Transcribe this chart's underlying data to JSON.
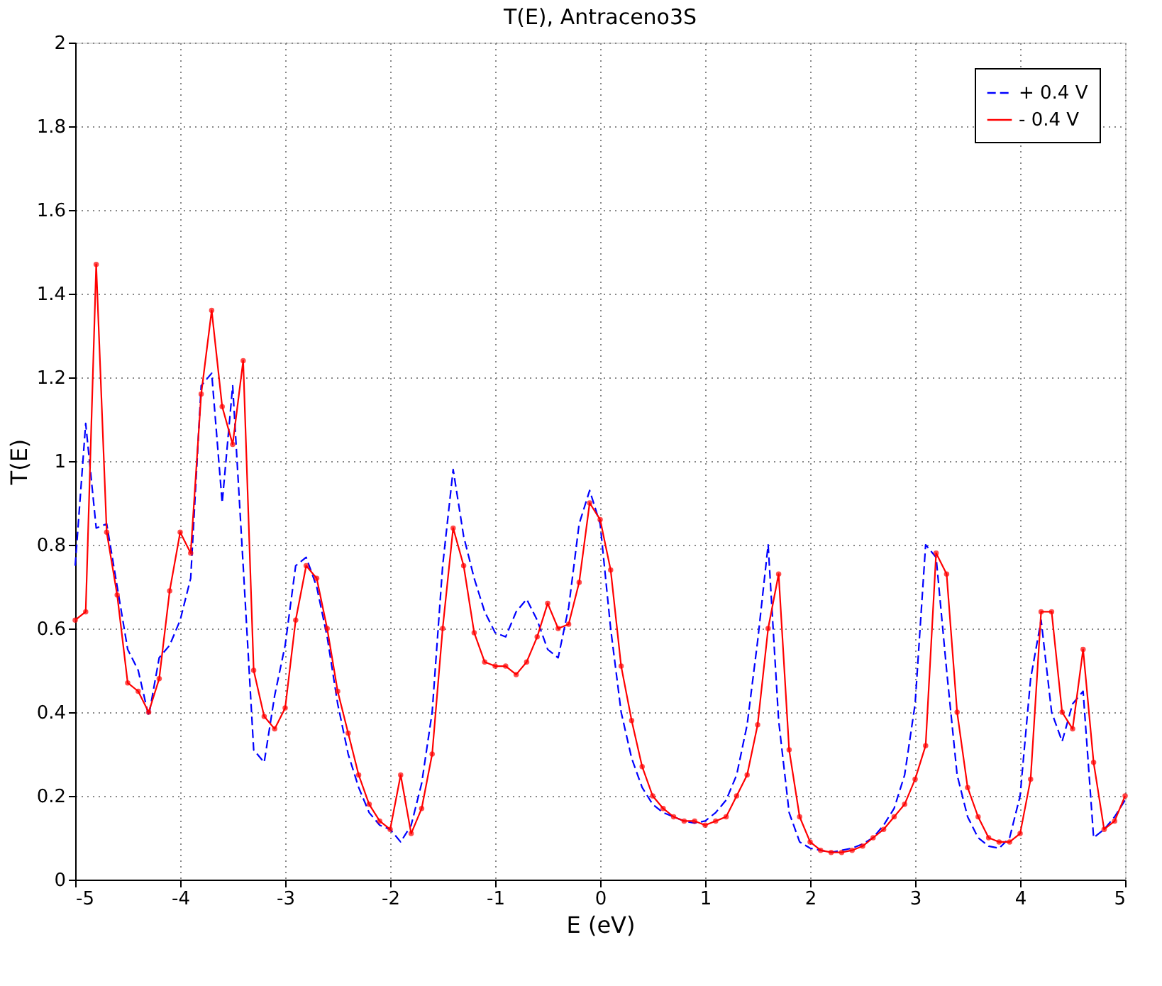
{
  "chart_data": {
    "type": "line",
    "title": "T(E), Antraceno3S",
    "xlabel": "E (eV)",
    "ylabel": "T(E)",
    "x": [
      -5.0,
      -4.9,
      -4.8,
      -4.7,
      -4.6,
      -4.5,
      -4.4,
      -4.3,
      -4.2,
      -4.1,
      -4.0,
      -3.9,
      -3.8,
      -3.7,
      -3.6,
      -3.5,
      -3.4,
      -3.3,
      -3.2,
      -3.1,
      -3.0,
      -2.9,
      -2.8,
      -2.7,
      -2.6,
      -2.5,
      -2.4,
      -2.3,
      -2.2,
      -2.1,
      -2.0,
      -1.9,
      -1.8,
      -1.7,
      -1.6,
      -1.5,
      -1.4,
      -1.3,
      -1.2,
      -1.1,
      -1.0,
      -0.9,
      -0.8,
      -0.7,
      -0.6,
      -0.5,
      -0.4,
      -0.3,
      -0.2,
      -0.1,
      0.0,
      0.1,
      0.2,
      0.3,
      0.4,
      0.5,
      0.6,
      0.7,
      0.8,
      0.9,
      1.0,
      1.1,
      1.2,
      1.3,
      1.4,
      1.5,
      1.6,
      1.7,
      1.8,
      1.9,
      2.0,
      2.1,
      2.2,
      2.3,
      2.4,
      2.5,
      2.6,
      2.7,
      2.8,
      2.9,
      3.0,
      3.1,
      3.2,
      3.3,
      3.4,
      3.5,
      3.6,
      3.7,
      3.8,
      3.9,
      4.0,
      4.1,
      4.2,
      4.3,
      4.4,
      4.5,
      4.6,
      4.7,
      4.8,
      4.9,
      5.0
    ],
    "series": [
      {
        "name": "+ 0.4 V",
        "color": "#0000ff",
        "line_style": "dashed",
        "marker": "none",
        "values": [
          0.75,
          1.09,
          0.84,
          0.85,
          0.7,
          0.55,
          0.5,
          0.39,
          0.53,
          0.56,
          0.62,
          0.72,
          1.18,
          1.21,
          0.9,
          1.18,
          0.75,
          0.31,
          0.28,
          0.44,
          0.56,
          0.75,
          0.77,
          0.7,
          0.58,
          0.42,
          0.3,
          0.22,
          0.16,
          0.13,
          0.12,
          0.09,
          0.13,
          0.23,
          0.4,
          0.75,
          0.98,
          0.82,
          0.72,
          0.64,
          0.59,
          0.58,
          0.64,
          0.67,
          0.62,
          0.55,
          0.53,
          0.65,
          0.85,
          0.93,
          0.85,
          0.6,
          0.4,
          0.29,
          0.22,
          0.18,
          0.16,
          0.15,
          0.14,
          0.135,
          0.14,
          0.16,
          0.19,
          0.25,
          0.37,
          0.57,
          0.8,
          0.38,
          0.16,
          0.09,
          0.075,
          0.07,
          0.065,
          0.07,
          0.075,
          0.085,
          0.1,
          0.13,
          0.17,
          0.25,
          0.42,
          0.8,
          0.77,
          0.5,
          0.25,
          0.15,
          0.1,
          0.08,
          0.075,
          0.1,
          0.2,
          0.48,
          0.62,
          0.4,
          0.33,
          0.42,
          0.45,
          0.1,
          0.12,
          0.15,
          0.19
        ]
      },
      {
        "name": "- 0.4 V",
        "color": "#ff0000",
        "line_style": "solid",
        "marker": "circle",
        "values": [
          0.62,
          0.64,
          1.47,
          0.83,
          0.68,
          0.47,
          0.45,
          0.4,
          0.48,
          0.69,
          0.83,
          0.78,
          1.16,
          1.36,
          1.13,
          1.04,
          1.24,
          0.5,
          0.39,
          0.36,
          0.41,
          0.62,
          0.75,
          0.72,
          0.6,
          0.45,
          0.35,
          0.25,
          0.18,
          0.14,
          0.12,
          0.25,
          0.11,
          0.17,
          0.3,
          0.6,
          0.84,
          0.75,
          0.59,
          0.52,
          0.51,
          0.51,
          0.49,
          0.52,
          0.58,
          0.66,
          0.6,
          0.61,
          0.71,
          0.9,
          0.86,
          0.74,
          0.51,
          0.38,
          0.27,
          0.2,
          0.17,
          0.15,
          0.14,
          0.14,
          0.13,
          0.14,
          0.15,
          0.2,
          0.25,
          0.37,
          0.6,
          0.73,
          0.31,
          0.15,
          0.09,
          0.07,
          0.065,
          0.065,
          0.07,
          0.08,
          0.1,
          0.12,
          0.15,
          0.18,
          0.24,
          0.32,
          0.78,
          0.73,
          0.4,
          0.22,
          0.15,
          0.1,
          0.09,
          0.09,
          0.11,
          0.24,
          0.64,
          0.64,
          0.4,
          0.36,
          0.55,
          0.28,
          0.12,
          0.14,
          0.2
        ]
      }
    ],
    "xlim": [
      -5,
      5
    ],
    "xticks": [
      -5,
      -4,
      -3,
      -2,
      -1,
      0,
      1,
      2,
      3,
      4,
      5
    ],
    "ylim": [
      0,
      2
    ],
    "yticks": [
      0,
      0.2,
      0.4,
      0.6,
      0.8,
      1,
      1.2,
      1.4,
      1.6,
      1.8,
      2
    ],
    "grid": true,
    "legend": "top right"
  }
}
